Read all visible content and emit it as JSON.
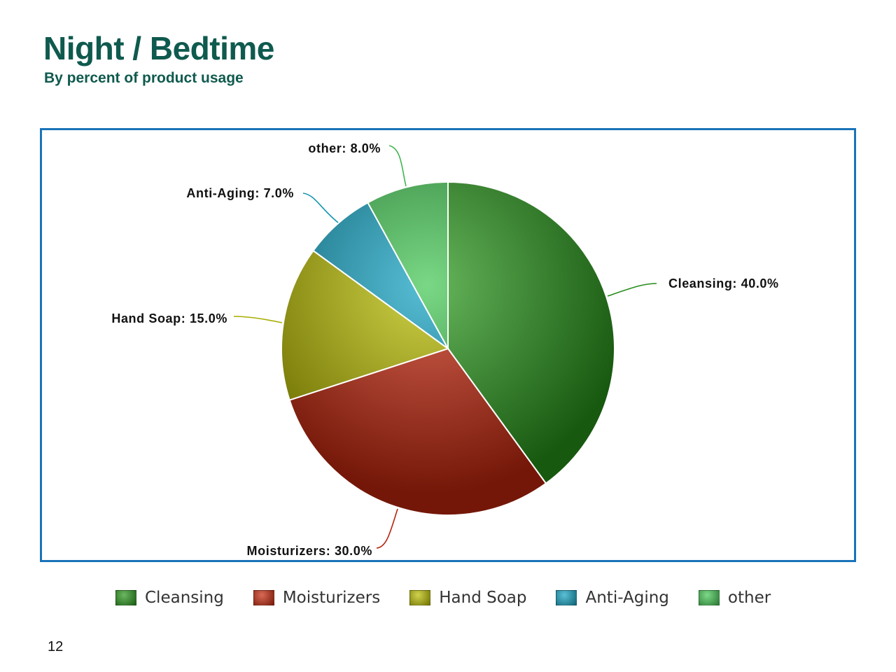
{
  "page": {
    "title": "Night / Bedtime",
    "subtitle": "By percent of product usage",
    "page_number": "12"
  },
  "chart_data": {
    "type": "pie",
    "categories": [
      "Cleansing",
      "Moisturizers",
      "Hand Soap",
      "Anti-Aging",
      "other"
    ],
    "values": [
      40.0,
      30.0,
      15.0,
      7.0,
      8.0
    ],
    "data_labels": [
      "Cleansing: 40.0%",
      "Moisturizers: 30.0%",
      "Hand Soap: 15.0%",
      "Anti-Aging: 7.0%",
      "other: 8.0%"
    ],
    "colors": [
      "#2a9a1c",
      "#c8280e",
      "#bcc000",
      "#15a5c4",
      "#45c955"
    ],
    "title": "",
    "legend": "bottom",
    "unit": "%"
  }
}
